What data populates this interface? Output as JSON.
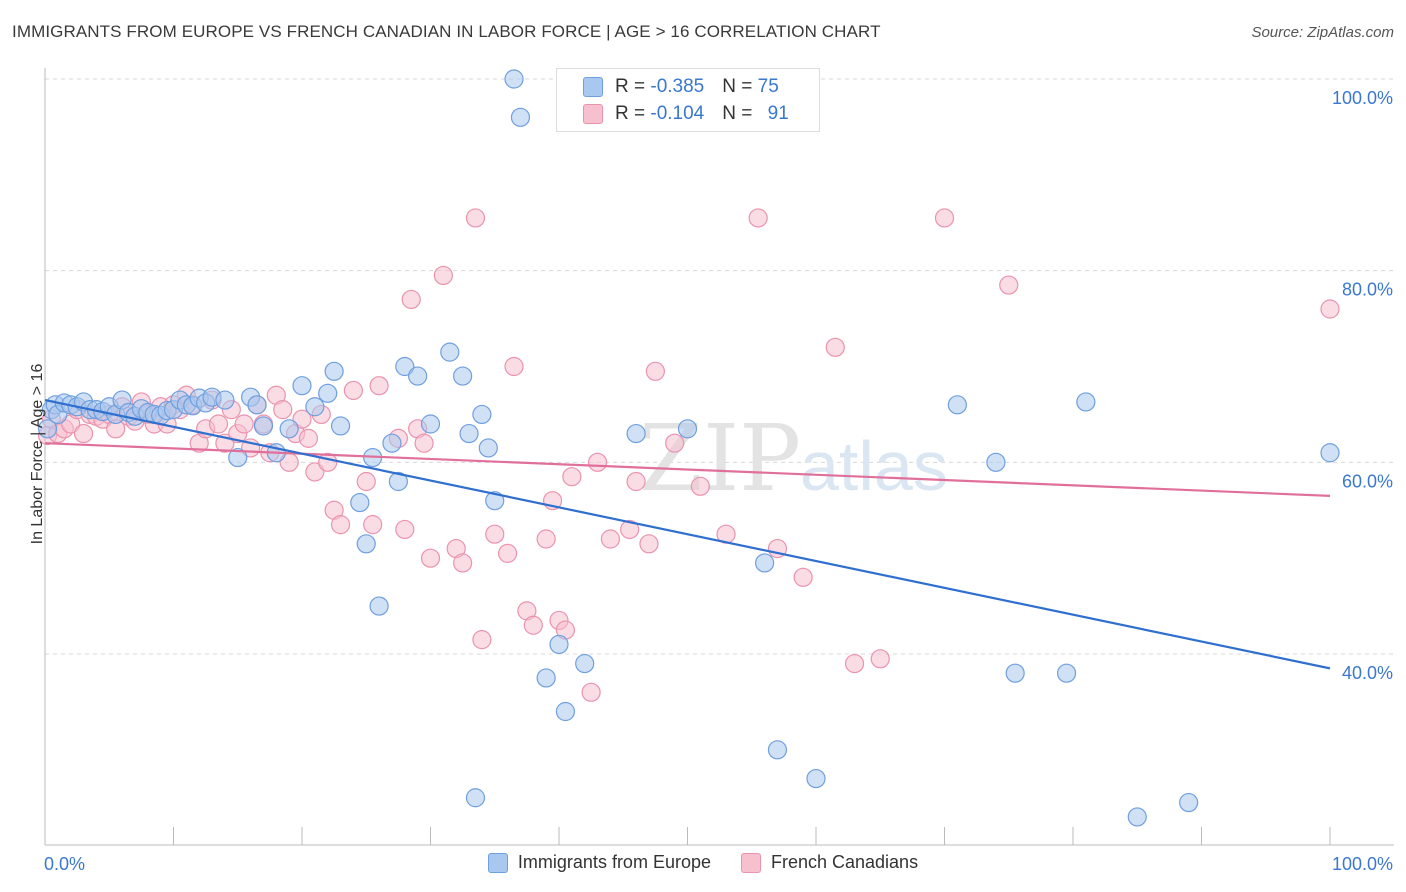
{
  "header": {
    "title": "IMMIGRANTS FROM EUROPE VS FRENCH CANADIAN IN LABOR FORCE | AGE > 16 CORRELATION CHART",
    "source": "Source: ZipAtlas.com"
  },
  "legend_top": {
    "rows": [
      {
        "r_label": "R = ",
        "r_value": "-0.385",
        "n_label": "N = ",
        "n_value": "75"
      },
      {
        "r_label": "R = ",
        "r_value": "-0.104",
        "n_label": "N = ",
        "n_value": "91"
      }
    ]
  },
  "legend_bottom": {
    "items": [
      {
        "label": "Immigrants from Europe"
      },
      {
        "label": "French Canadians"
      }
    ]
  },
  "watermark": {
    "zip": "ZIP",
    "atlas": "atlas"
  },
  "colors": {
    "blue_fill": "#a9c8ef",
    "blue_stroke": "#6f9fde",
    "blue_line": "#2f6fcf",
    "pink_fill": "#f6c0cf",
    "pink_stroke": "#ea93ae",
    "pink_line": "#e0709a",
    "tick_label": "#3a78d0",
    "grid": "#d8d8d8"
  },
  "chart_data": {
    "type": "scatter",
    "title": "IMMIGRANTS FROM EUROPE VS FRENCH CANADIAN IN LABOR FORCE | AGE > 16 CORRELATION CHART",
    "xlabel": "",
    "ylabel": "In Labor Force | Age > 16",
    "xlim": [
      0,
      100
    ],
    "ylim": [
      20,
      100
    ],
    "x_tick_labels": [
      "0.0%",
      "100.0%"
    ],
    "y_ticks": [
      40,
      60,
      80,
      100
    ],
    "y_tick_labels": [
      "40.0%",
      "60.0%",
      "80.0%",
      "100.0%"
    ],
    "grid": true,
    "legend_position": "top-center",
    "series": [
      {
        "name": "Immigrants from Europe",
        "color": "#6f9fde",
        "points": [
          [
            0.2,
            63.5
          ],
          [
            0.5,
            65.5
          ],
          [
            0.8,
            66.0
          ],
          [
            1.0,
            65.0
          ],
          [
            1.5,
            66.2
          ],
          [
            2.0,
            66.0
          ],
          [
            2.5,
            65.8
          ],
          [
            3.0,
            66.3
          ],
          [
            3.5,
            65.5
          ],
          [
            4.0,
            65.5
          ],
          [
            4.5,
            65.3
          ],
          [
            5.0,
            65.8
          ],
          [
            5.5,
            65.0
          ],
          [
            6.0,
            66.5
          ],
          [
            6.5,
            65.2
          ],
          [
            7.0,
            64.8
          ],
          [
            7.5,
            65.6
          ],
          [
            8.0,
            65.2
          ],
          [
            8.5,
            65.0
          ],
          [
            9.0,
            64.9
          ],
          [
            9.5,
            65.4
          ],
          [
            10.0,
            65.5
          ],
          [
            10.5,
            66.5
          ],
          [
            11.0,
            66.0
          ],
          [
            11.5,
            65.9
          ],
          [
            12.0,
            66.7
          ],
          [
            12.5,
            66.2
          ],
          [
            13.0,
            66.8
          ],
          [
            14.0,
            66.5
          ],
          [
            15.0,
            60.5
          ],
          [
            16.0,
            66.8
          ],
          [
            16.5,
            66.0
          ],
          [
            17.0,
            63.8
          ],
          [
            18.0,
            61.0
          ],
          [
            19.0,
            63.5
          ],
          [
            20.0,
            68.0
          ],
          [
            21.0,
            65.8
          ],
          [
            22.0,
            67.2
          ],
          [
            23.0,
            63.8
          ],
          [
            24.5,
            55.8
          ],
          [
            25.0,
            51.5
          ],
          [
            27.0,
            62.0
          ],
          [
            28.0,
            70.0
          ],
          [
            29.0,
            69.0
          ],
          [
            30.0,
            64.0
          ],
          [
            31.5,
            71.5
          ],
          [
            32.5,
            69.0
          ],
          [
            33.0,
            63.0
          ],
          [
            34.0,
            65.0
          ],
          [
            34.5,
            61.5
          ],
          [
            35.0,
            56.0
          ],
          [
            36.5,
            100.0
          ],
          [
            37.0,
            96.0
          ],
          [
            39.0,
            37.5
          ],
          [
            40.0,
            41.0
          ],
          [
            40.5,
            34.0
          ],
          [
            42.0,
            39.0
          ],
          [
            46.0,
            63.0
          ],
          [
            50.0,
            63.5
          ],
          [
            56.0,
            49.5
          ],
          [
            57.0,
            30.0
          ],
          [
            60.0,
            27.0
          ],
          [
            71.0,
            66.0
          ],
          [
            74.0,
            60.0
          ],
          [
            75.5,
            38.0
          ],
          [
            79.5,
            38.0
          ],
          [
            81.0,
            66.3
          ],
          [
            85.0,
            23.0
          ],
          [
            89.0,
            24.5
          ],
          [
            100.0,
            61.0
          ],
          [
            22.5,
            69.5
          ],
          [
            25.5,
            60.5
          ],
          [
            26.0,
            45.0
          ],
          [
            27.5,
            58.0
          ],
          [
            33.5,
            25.0
          ]
        ]
      },
      {
        "name": "French Canadians",
        "color": "#ea93ae",
        "points": [
          [
            0.2,
            62.8
          ],
          [
            0.5,
            64.5
          ],
          [
            1.0,
            63.0
          ],
          [
            1.5,
            63.5
          ],
          [
            2.0,
            64.0
          ],
          [
            2.5,
            65.5
          ],
          [
            3.0,
            63.0
          ],
          [
            3.5,
            65.0
          ],
          [
            4.0,
            64.8
          ],
          [
            4.5,
            64.5
          ],
          [
            5.0,
            65.0
          ],
          [
            5.5,
            63.5
          ],
          [
            6.0,
            65.8
          ],
          [
            6.5,
            64.8
          ],
          [
            7.0,
            64.3
          ],
          [
            7.5,
            66.3
          ],
          [
            8.0,
            65.0
          ],
          [
            8.5,
            64.0
          ],
          [
            9.0,
            65.8
          ],
          [
            9.5,
            64.0
          ],
          [
            10.0,
            66.0
          ],
          [
            10.5,
            65.5
          ],
          [
            11.0,
            67.0
          ],
          [
            11.5,
            66.0
          ],
          [
            12.0,
            62.0
          ],
          [
            12.5,
            63.5
          ],
          [
            13.0,
            66.5
          ],
          [
            13.5,
            64.0
          ],
          [
            14.0,
            62.0
          ],
          [
            14.5,
            65.5
          ],
          [
            15.0,
            63.0
          ],
          [
            15.5,
            64.0
          ],
          [
            16.0,
            61.5
          ],
          [
            16.5,
            66.0
          ],
          [
            17.0,
            64.0
          ],
          [
            17.5,
            61.0
          ],
          [
            18.0,
            67.0
          ],
          [
            18.5,
            65.5
          ],
          [
            19.0,
            60.0
          ],
          [
            19.5,
            63.0
          ],
          [
            20.0,
            64.5
          ],
          [
            20.5,
            62.5
          ],
          [
            21.0,
            59.0
          ],
          [
            21.5,
            65.0
          ],
          [
            22.0,
            60.0
          ],
          [
            22.5,
            55.0
          ],
          [
            23.0,
            53.5
          ],
          [
            24.0,
            67.5
          ],
          [
            25.0,
            58.0
          ],
          [
            25.5,
            53.5
          ],
          [
            26.0,
            68.0
          ],
          [
            27.5,
            62.5
          ],
          [
            28.0,
            53.0
          ],
          [
            28.5,
            77.0
          ],
          [
            29.0,
            63.5
          ],
          [
            29.5,
            62.0
          ],
          [
            30.0,
            50.0
          ],
          [
            31.0,
            79.5
          ],
          [
            32.0,
            51.0
          ],
          [
            32.5,
            49.5
          ],
          [
            33.5,
            85.5
          ],
          [
            34.0,
            41.5
          ],
          [
            35.0,
            52.5
          ],
          [
            36.0,
            50.5
          ],
          [
            36.5,
            70.0
          ],
          [
            37.5,
            44.5
          ],
          [
            38.0,
            43.0
          ],
          [
            39.0,
            52.0
          ],
          [
            40.0,
            43.5
          ],
          [
            40.5,
            42.5
          ],
          [
            41.0,
            58.5
          ],
          [
            42.5,
            36.0
          ],
          [
            44.0,
            52.0
          ],
          [
            45.5,
            53.0
          ],
          [
            47.0,
            51.5
          ],
          [
            47.5,
            69.5
          ],
          [
            49.0,
            62.0
          ],
          [
            51.0,
            57.5
          ],
          [
            53.0,
            52.5
          ],
          [
            55.5,
            85.5
          ],
          [
            57.0,
            51.0
          ],
          [
            59.0,
            48.0
          ],
          [
            61.5,
            72.0
          ],
          [
            63.0,
            39.0
          ],
          [
            65.0,
            39.5
          ],
          [
            70.0,
            85.5
          ],
          [
            75.0,
            78.5
          ],
          [
            100.0,
            76.0
          ],
          [
            46.0,
            58.0
          ],
          [
            43.0,
            60.0
          ],
          [
            39.5,
            56.0
          ]
        ]
      }
    ],
    "trend_lines": [
      {
        "series": "Immigrants from Europe",
        "x": [
          0,
          100
        ],
        "y": [
          66.5,
          38.5
        ]
      },
      {
        "series": "French Canadians",
        "x": [
          0,
          100
        ],
        "y": [
          62.0,
          56.5
        ]
      }
    ]
  }
}
